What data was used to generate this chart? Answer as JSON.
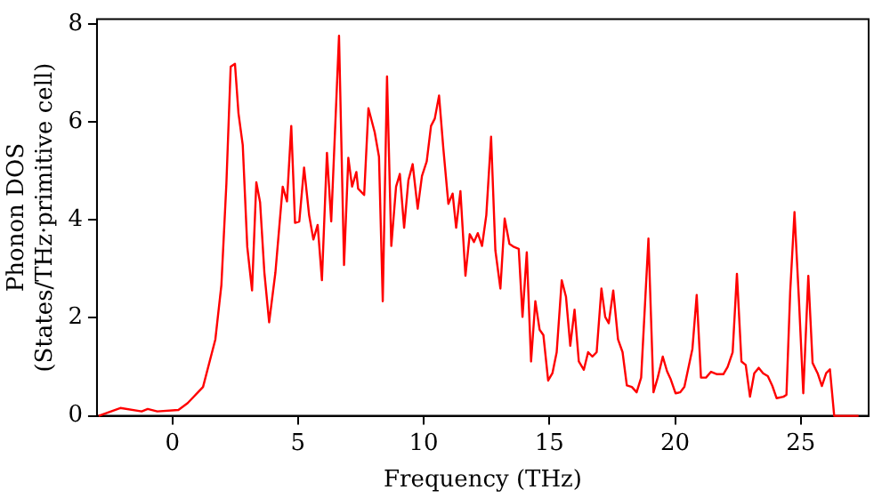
{
  "chart_data": {
    "type": "line",
    "xlabel": "Frequency (THz)",
    "ylabel": "Phonon DOS\n(States/THz·primitive cell)",
    "xlim": [
      -3,
      27.7
    ],
    "ylim": [
      0,
      8.1
    ],
    "xticks": [
      0,
      5,
      10,
      15,
      20,
      25
    ],
    "yticks": [
      0,
      2,
      4,
      6,
      8
    ],
    "grid": false,
    "legend": false,
    "marker": "none",
    "line_style": "solid",
    "series": [
      {
        "color": "#ff0000",
        "x": [
          -2.93,
          -2.07,
          -1.22,
          -0.98,
          -0.6,
          0.24,
          0.61,
          1.22,
          1.71,
          1.95,
          2.15,
          2.32,
          2.49,
          2.63,
          2.8,
          2.98,
          3.17,
          3.34,
          3.49,
          3.66,
          3.85,
          4.1,
          4.39,
          4.56,
          4.73,
          4.88,
          5.05,
          5.24,
          5.44,
          5.61,
          5.78,
          5.95,
          6.15,
          6.32,
          6.63,
          6.83,
          7.0,
          7.15,
          7.32,
          7.39,
          7.63,
          7.8,
          8.05,
          8.22,
          8.37,
          8.54,
          8.71,
          8.9,
          9.05,
          9.22,
          9.39,
          9.56,
          9.76,
          9.93,
          10.12,
          10.29,
          10.44,
          10.61,
          10.78,
          10.98,
          11.15,
          11.29,
          11.46,
          11.66,
          11.83,
          12.0,
          12.15,
          12.32,
          12.49,
          12.68,
          12.85,
          13.05,
          13.22,
          13.41,
          13.59,
          13.78,
          13.93,
          14.1,
          14.27,
          14.44,
          14.61,
          14.76,
          14.95,
          15.12,
          15.29,
          15.49,
          15.66,
          15.83,
          16.0,
          16.17,
          16.37,
          16.54,
          16.71,
          16.88,
          17.07,
          17.22,
          17.36,
          17.54,
          17.73,
          17.91,
          18.08,
          18.28,
          18.47,
          18.65,
          18.94,
          19.14,
          19.31,
          19.51,
          19.68,
          19.83,
          20.02,
          20.2,
          20.37,
          20.69,
          20.86,
          21.03,
          21.23,
          21.43,
          21.67,
          21.92,
          22.09,
          22.29,
          22.46,
          22.64,
          22.81,
          22.98,
          23.15,
          23.33,
          23.5,
          23.69,
          23.87,
          24.04,
          24.31,
          24.43,
          24.58,
          24.75,
          24.93,
          25.1,
          25.3,
          25.47,
          25.67,
          25.84,
          26.01,
          26.16,
          26.33,
          27.3
        ],
        "values": [
          0.0,
          0.16,
          0.09,
          0.14,
          0.09,
          0.12,
          0.26,
          0.59,
          1.56,
          2.67,
          4.75,
          7.13,
          7.19,
          6.18,
          5.53,
          3.45,
          2.56,
          4.77,
          4.36,
          2.93,
          1.91,
          2.93,
          4.68,
          4.38,
          5.92,
          3.94,
          3.97,
          5.07,
          4.1,
          3.6,
          3.9,
          2.77,
          5.37,
          3.97,
          7.76,
          3.08,
          5.27,
          4.68,
          4.98,
          4.64,
          4.51,
          6.28,
          5.79,
          5.29,
          2.34,
          6.93,
          3.47,
          4.68,
          4.94,
          3.84,
          4.81,
          5.14,
          4.23,
          4.9,
          5.2,
          5.92,
          6.07,
          6.54,
          5.46,
          4.33,
          4.54,
          3.84,
          4.59,
          2.86,
          3.71,
          3.55,
          3.73,
          3.47,
          4.1,
          5.7,
          3.38,
          2.6,
          4.03,
          3.51,
          3.45,
          3.41,
          2.02,
          3.34,
          1.11,
          2.34,
          1.76,
          1.65,
          0.72,
          0.87,
          1.3,
          2.77,
          2.43,
          1.43,
          2.17,
          1.11,
          0.94,
          1.3,
          1.21,
          1.3,
          2.6,
          2.02,
          1.89,
          2.56,
          1.56,
          1.3,
          0.62,
          0.59,
          0.48,
          0.78,
          3.62,
          0.48,
          0.78,
          1.21,
          0.91,
          0.74,
          0.46,
          0.48,
          0.59,
          1.37,
          2.47,
          0.78,
          0.78,
          0.9,
          0.85,
          0.85,
          1.0,
          1.3,
          2.9,
          1.11,
          1.04,
          0.39,
          0.87,
          0.98,
          0.87,
          0.81,
          0.61,
          0.36,
          0.39,
          0.43,
          2.54,
          4.16,
          2.34,
          0.46,
          2.86,
          1.08,
          0.87,
          0.61,
          0.87,
          0.95,
          0.0,
          0.0
        ]
      }
    ]
  }
}
